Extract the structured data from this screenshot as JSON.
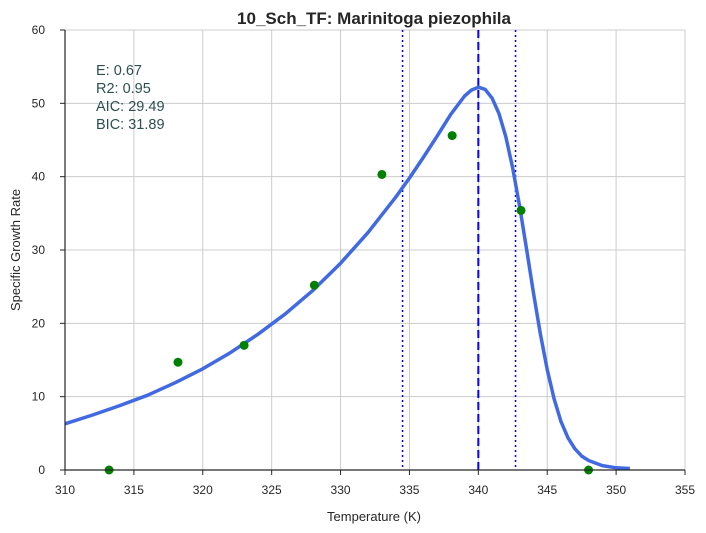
{
  "chart_data": {
    "type": "line",
    "title": "10_Sch_TF: Marinitoga piezophila",
    "xlabel": "Temperature (K)",
    "ylabel": "Specific Growth Rate",
    "xlim": [
      310,
      355
    ],
    "ylim": [
      0,
      60
    ],
    "x_ticks": [
      310,
      315,
      320,
      325,
      330,
      335,
      340,
      345,
      350,
      355
    ],
    "y_ticks": [
      0,
      10,
      20,
      30,
      40,
      50,
      60
    ],
    "grid": true,
    "annotations": [
      "E:  0.67",
      "R2:  0.95",
      "AIC: 29.49",
      "BIC: 31.89"
    ],
    "series": [
      {
        "kind": "scatter",
        "color": "#008000",
        "x": [
          313.2,
          318.2,
          323.0,
          328.1,
          333.0,
          338.1,
          343.1,
          348.0
        ],
        "y": [
          0.0,
          14.7,
          17.0,
          25.2,
          40.3,
          45.6,
          35.4,
          0.0
        ]
      },
      {
        "kind": "line",
        "color": "#4169e1",
        "x": [
          310,
          312,
          314,
          316,
          318,
          320,
          322,
          324,
          326,
          328,
          330,
          332,
          334,
          335,
          336,
          337,
          338,
          339,
          339.5,
          340,
          340.5,
          341,
          341.5,
          342,
          342.5,
          343,
          343.5,
          344,
          344.5,
          345,
          345.5,
          346,
          346.5,
          347,
          347.5,
          348,
          349,
          350,
          351
        ],
        "y": [
          6.3,
          7.5,
          8.8,
          10.2,
          11.9,
          13.8,
          16.0,
          18.5,
          21.3,
          24.5,
          28.2,
          32.4,
          37.2,
          39.8,
          42.6,
          45.5,
          48.5,
          51.0,
          51.8,
          52.2,
          51.9,
          50.7,
          48.6,
          45.4,
          41.1,
          35.9,
          30.1,
          24.2,
          18.6,
          13.7,
          9.7,
          6.6,
          4.4,
          2.9,
          1.9,
          1.3,
          0.6,
          0.3,
          0.2
        ]
      }
    ],
    "vlines": [
      {
        "x": 340.0,
        "style": "dashed",
        "color": "#0000ff"
      },
      {
        "x": 334.5,
        "style": "dotted",
        "color": "#0000ff"
      },
      {
        "x": 342.7,
        "style": "dotted",
        "color": "#0000ff"
      }
    ]
  }
}
